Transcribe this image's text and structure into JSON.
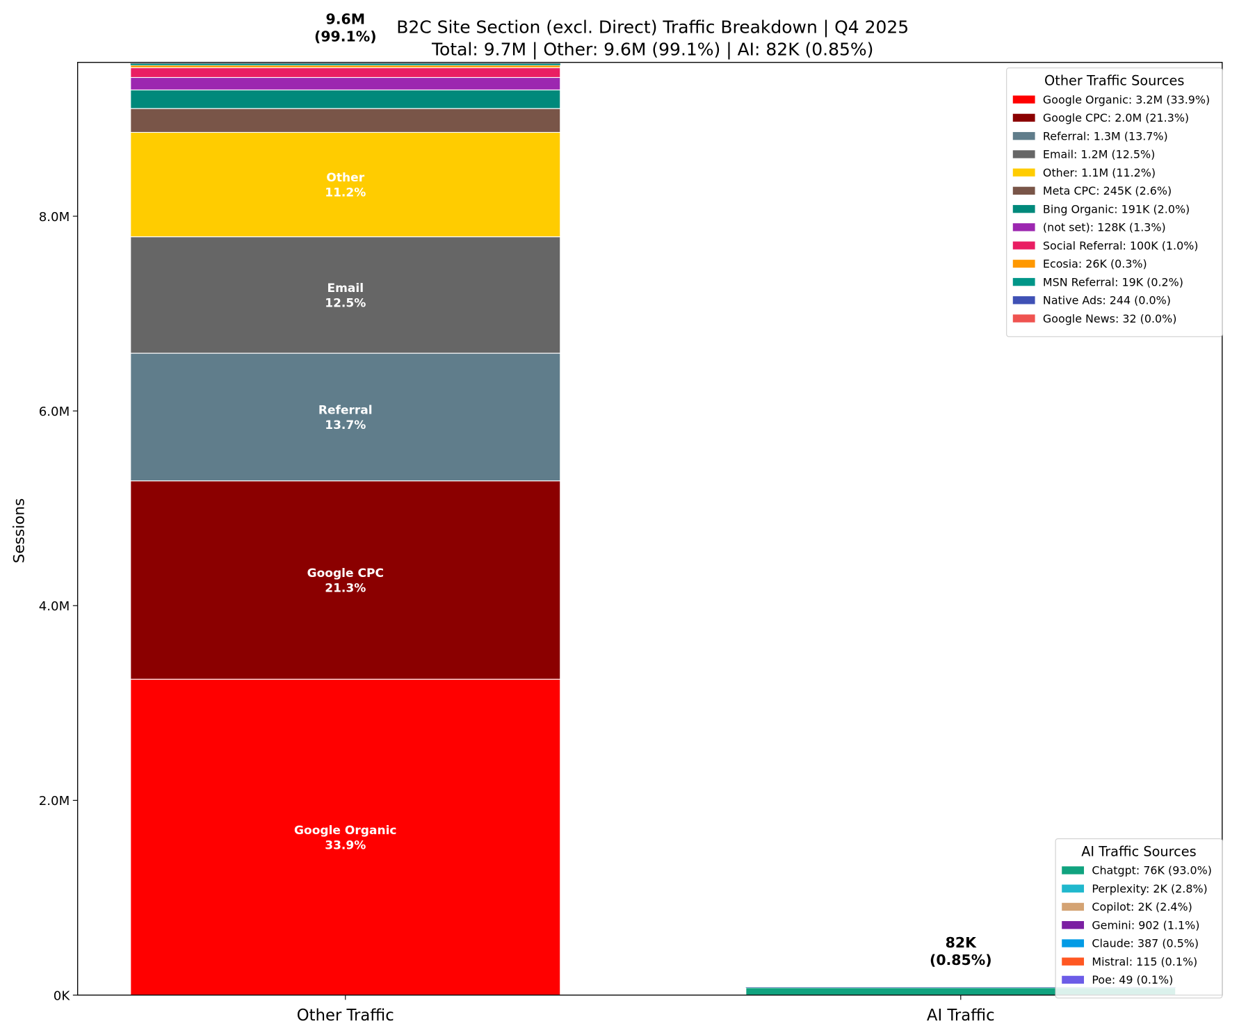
{
  "chart_data": {
    "type": "bar",
    "stacked": true,
    "title": "B2C Site Section (excl. Direct) Traffic Breakdown | Q4 2025",
    "subtitle": "Total: 9.7M | Other: 9.6M (99.1%) | AI: 82K (0.85%)",
    "xlabel": "",
    "ylabel": "Sessions",
    "ylim": [
      0,
      9580000
    ],
    "yticks": [
      0,
      2000000,
      4000000,
      6000000,
      8000000
    ],
    "ytick_labels": [
      "0K",
      "2.0M",
      "4.0M",
      "6.0M",
      "8.0M"
    ],
    "categories": [
      "Other Traffic",
      "AI Traffic"
    ],
    "grid": false,
    "bar_totals": [
      {
        "line1": "9.6M",
        "line2": "(99.1%)"
      },
      {
        "line1": "82K",
        "line2": "(0.85%)"
      }
    ],
    "stacks": [
      {
        "category": "Other Traffic",
        "legend_title": "Other Traffic Sources",
        "legend_placement": "upper-right",
        "segments": [
          {
            "name": "Google Organic",
            "value": 3244000,
            "pct": "33.9%",
            "color": "#ff0000",
            "legend": "Google Organic: 3.2M (33.9%)",
            "show_label": true
          },
          {
            "name": "Google CPC",
            "value": 2038000,
            "pct": "21.3%",
            "color": "#8b0000",
            "legend": "Google CPC: 2.0M (21.3%)",
            "show_label": true
          },
          {
            "name": "Referral",
            "value": 1311000,
            "pct": "13.7%",
            "color": "#607d8b",
            "legend": "Referral: 1.3M (13.7%)",
            "show_label": true
          },
          {
            "name": "Email",
            "value": 1196000,
            "pct": "12.5%",
            "color": "#666666",
            "legend": "Email: 1.2M (12.5%)",
            "show_label": true
          },
          {
            "name": "Other",
            "value": 1072000,
            "pct": "11.2%",
            "color": "#ffcc00",
            "legend": "Other: 1.1M (11.2%)",
            "show_label": true
          },
          {
            "name": "Meta CPC",
            "value": 245000,
            "pct": "2.6%",
            "color": "#795548",
            "legend": "Meta CPC: 245K (2.6%)",
            "show_label": false
          },
          {
            "name": "Bing Organic",
            "value": 191000,
            "pct": "2.0%",
            "color": "#00897b",
            "legend": "Bing Organic: 191K (2.0%)",
            "show_label": false
          },
          {
            "name": "(not set)",
            "value": 128000,
            "pct": "1.3%",
            "color": "#9c27b0",
            "legend": "(not set): 128K (1.3%)",
            "show_label": false
          },
          {
            "name": "Social Referral",
            "value": 100000,
            "pct": "1.0%",
            "color": "#e91e63",
            "legend": "Social Referral: 100K (1.0%)",
            "show_label": false
          },
          {
            "name": "Ecosia",
            "value": 26000,
            "pct": "0.3%",
            "color": "#ff9800",
            "legend": "Ecosia: 26K (0.3%)",
            "show_label": false
          },
          {
            "name": "MSN Referral",
            "value": 19000,
            "pct": "0.2%",
            "color": "#009688",
            "legend": "MSN Referral: 19K (0.2%)",
            "show_label": false
          },
          {
            "name": "Native Ads",
            "value": 244,
            "pct": "0.0%",
            "color": "#3f51b5",
            "legend": "Native Ads: 244 (0.0%)",
            "show_label": false
          },
          {
            "name": "Google News",
            "value": 32,
            "pct": "0.0%",
            "color": "#ef5350",
            "legend": "Google News: 32 (0.0%)",
            "show_label": false
          }
        ]
      },
      {
        "category": "AI Traffic",
        "legend_title": "AI Traffic Sources",
        "legend_placement": "lower-right",
        "segments": [
          {
            "name": "Chatgpt",
            "value": 76260,
            "pct": "93.0%",
            "color": "#10a37f",
            "legend": "Chatgpt: 76K (93.0%)",
            "show_label": false
          },
          {
            "name": "Perplexity",
            "value": 2296,
            "pct": "2.8%",
            "color": "#20b8cd",
            "legend": "Perplexity: 2K (2.8%)",
            "show_label": false
          },
          {
            "name": "Copilot",
            "value": 1968,
            "pct": "2.4%",
            "color": "#d4a373",
            "legend": "Copilot: 2K (2.4%)",
            "show_label": false
          },
          {
            "name": "Gemini",
            "value": 902,
            "pct": "1.1%",
            "color": "#7b1fa2",
            "legend": "Gemini: 902 (1.1%)",
            "show_label": false
          },
          {
            "name": "Claude",
            "value": 387,
            "pct": "0.5%",
            "color": "#039be5",
            "legend": "Claude: 387 (0.5%)",
            "show_label": false
          },
          {
            "name": "Mistral",
            "value": 115,
            "pct": "0.1%",
            "color": "#ff5722",
            "legend": "Mistral: 115 (0.1%)",
            "show_label": false
          },
          {
            "name": "Poe",
            "value": 49,
            "pct": "0.1%",
            "color": "#6c5ce7",
            "legend": "Poe: 49 (0.1%)",
            "show_label": false
          }
        ]
      }
    ]
  }
}
